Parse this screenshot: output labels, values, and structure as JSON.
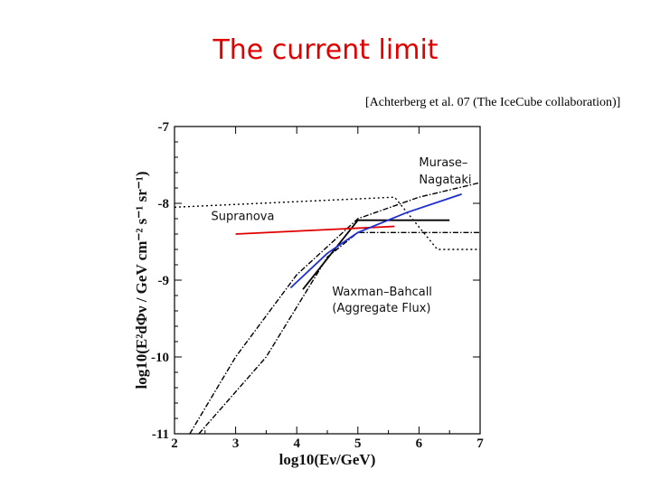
{
  "slide": {
    "title": "The current limit",
    "citation": "[Achterberg et al. 07 (The IceCube collaboration)]"
  },
  "chart_data": {
    "type": "line",
    "title": "",
    "xlabel": "log10(Eν/GeV)",
    "ylabel": "log10(E²dΦν / GeV cm⁻² s⁻¹ sr⁻¹)",
    "xlim": [
      2,
      7
    ],
    "ylim": [
      -11,
      -7
    ],
    "x_ticks": [
      "2",
      "3",
      "4",
      "5",
      "6",
      "7"
    ],
    "y_ticks": [
      "-11",
      "-10",
      "-9",
      "-8",
      "-7"
    ],
    "grid": false,
    "annotations": [
      {
        "text": "Murase–",
        "x": 6.0,
        "y": -7.52
      },
      {
        "text": "Nagataki",
        "x": 6.0,
        "y": -7.74
      },
      {
        "text": "Supranova",
        "x": 2.6,
        "y": -8.22
      },
      {
        "text": "Waxman–Bahcall",
        "x": 4.58,
        "y": -9.2
      },
      {
        "text": "(Aggregate Flux)",
        "x": 4.58,
        "y": -9.41
      }
    ],
    "series": [
      {
        "color": "#000000",
        "style": "dotted",
        "x": [
          2.0,
          5.6,
          6.3,
          7.0
        ],
        "y": [
          -8.05,
          -7.92,
          -8.6,
          -8.6
        ]
      },
      {
        "color": "#000000",
        "style": "dashdot",
        "x": [
          2.25,
          3.0,
          4.0,
          5.0,
          6.0,
          7.0
        ],
        "y": [
          -11.0,
          -10.0,
          -8.93,
          -8.2,
          -7.92,
          -7.73
        ]
      },
      {
        "color": "#000000",
        "style": "dashdot",
        "x": [
          2.4,
          3.5,
          4.5,
          5.0,
          6.0,
          7.0
        ],
        "y": [
          -11.0,
          -10.0,
          -8.7,
          -8.38,
          -8.38,
          -8.38
        ]
      },
      {
        "color": "#000000",
        "style": "solid",
        "x": [
          4.1,
          5.0,
          6.5
        ],
        "y": [
          -9.12,
          -8.22,
          -8.22
        ]
      },
      {
        "color": "#e00000",
        "style": "solid",
        "x": [
          3.0,
          5.6
        ],
        "y": [
          -8.4,
          -8.3
        ]
      },
      {
        "color": "#1f2fd0",
        "style": "solid",
        "x": [
          3.9,
          4.5,
          5.0,
          5.8,
          6.7
        ],
        "y": [
          -9.1,
          -8.65,
          -8.38,
          -8.12,
          -7.88
        ]
      }
    ]
  }
}
